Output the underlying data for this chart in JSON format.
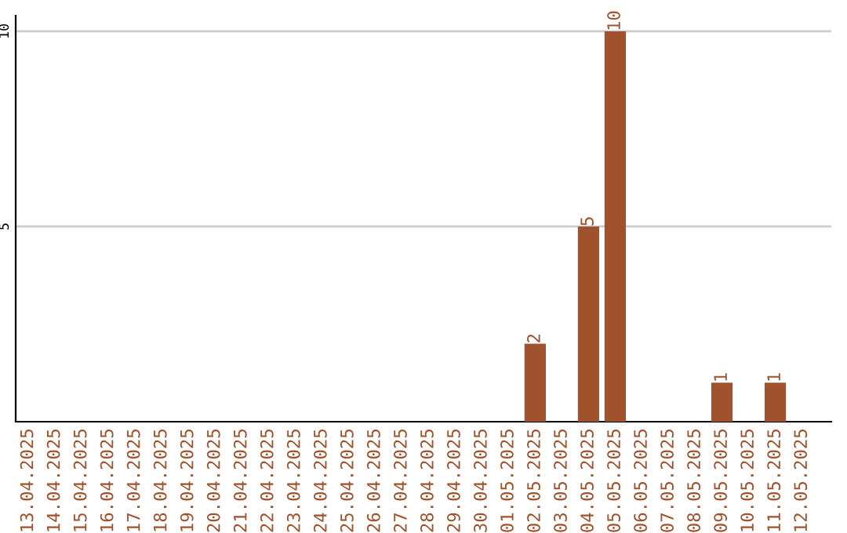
{
  "chart_data": {
    "type": "bar",
    "categories": [
      "13.04.2025",
      "14.04.2025",
      "15.04.2025",
      "16.04.2025",
      "17.04.2025",
      "18.04.2025",
      "19.04.2025",
      "20.04.2025",
      "21.04.2025",
      "22.04.2025",
      "23.04.2025",
      "24.04.2025",
      "25.04.2025",
      "26.04.2025",
      "27.04.2025",
      "28.04.2025",
      "29.04.2025",
      "30.04.2025",
      "01.05.2025",
      "02.05.2025",
      "03.05.2025",
      "04.05.2025",
      "05.05.2025",
      "06.05.2025",
      "07.05.2025",
      "08.05.2025",
      "09.05.2025",
      "10.05.2025",
      "11.05.2025",
      "12.05.2025"
    ],
    "values": [
      0,
      0,
      0,
      0,
      0,
      0,
      0,
      0,
      0,
      0,
      0,
      0,
      0,
      0,
      0,
      0,
      0,
      0,
      0,
      2,
      0,
      5,
      10,
      0,
      0,
      0,
      1,
      0,
      1,
      0
    ],
    "value_labels": [
      null,
      null,
      null,
      null,
      null,
      null,
      null,
      null,
      null,
      null,
      null,
      null,
      null,
      null,
      null,
      null,
      null,
      null,
      null,
      "2",
      null,
      "5",
      "10",
      null,
      null,
      null,
      "1",
      null,
      "1",
      null
    ],
    "color": "#a0522d",
    "ylim": [
      0,
      10.4
    ],
    "yticks": [
      5,
      10
    ],
    "grid": "y"
  }
}
